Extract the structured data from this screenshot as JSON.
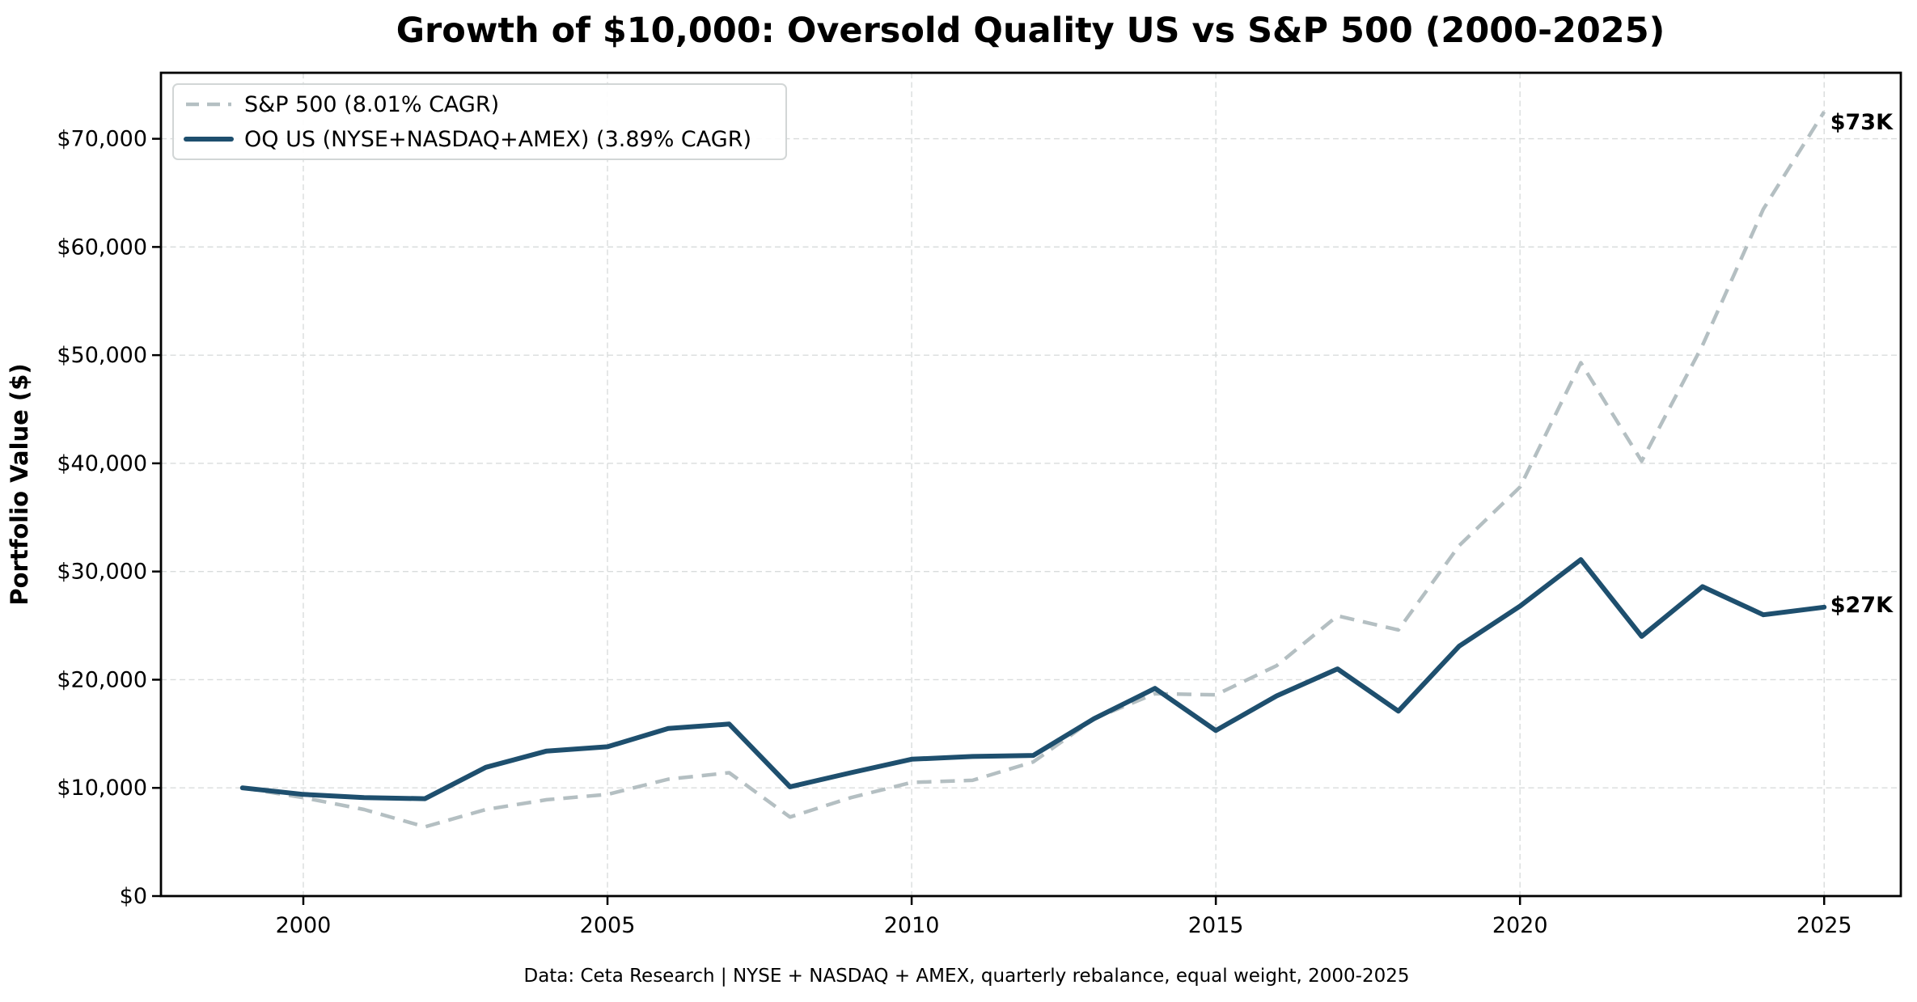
{
  "header": {
    "title": "Growth of $10,000: Oversold Quality US vs S&P 500 (2000-2025)"
  },
  "y_axis": {
    "label": "Portfolio Value ($)",
    "tick_values": [
      0,
      10000,
      20000,
      30000,
      40000,
      50000,
      60000,
      70000
    ],
    "tick_labels": [
      "$0",
      "$10,000",
      "$20,000",
      "$30,000",
      "$40,000",
      "$50,000",
      "$60,000",
      "$70,000"
    ]
  },
  "x_axis": {
    "tick_values": [
      2000,
      2005,
      2010,
      2015,
      2020,
      2025
    ],
    "tick_labels": [
      "2000",
      "2005",
      "2010",
      "2015",
      "2020",
      "2025"
    ]
  },
  "legend": {
    "items": [
      {
        "label": "S&P 500 (8.01% CAGR)",
        "style": "dashed"
      },
      {
        "label": "OQ US (NYSE+NASDAQ+AMEX) (3.89% CAGR)",
        "style": "solid"
      }
    ]
  },
  "annotations": {
    "sp500_end_label": "$73K",
    "oq_end_label": "$27K"
  },
  "footer": {
    "caption": "Data: Ceta Research | NYSE + NASDAQ + AMEX, quarterly rebalance, equal weight, 2000-2025"
  },
  "colors": {
    "sp500_line": "#b4bfc2",
    "oq_line": "#1e4f6e",
    "sp500_label": "#9aa8ad",
    "grid": "#d9dcdc",
    "footer_text": "#8da0a4",
    "axis_text": "#000000"
  },
  "chart_data": {
    "type": "line",
    "title": "Growth of $10,000: Oversold Quality US vs S&P 500 (2000-2025)",
    "xlabel": "",
    "ylabel": "Portfolio Value ($)",
    "xlim": [
      1997.66,
      2026.26
    ],
    "ylim": [
      0,
      76100
    ],
    "grid": true,
    "legend_position": "upper left",
    "x": [
      1999,
      2000,
      2001,
      2002,
      2003,
      2004,
      2005,
      2006,
      2007,
      2008,
      2009,
      2010,
      2011,
      2012,
      2013,
      2014,
      2015,
      2016,
      2017,
      2018,
      2019,
      2020,
      2021,
      2022,
      2023,
      2024,
      2025
    ],
    "series": [
      {
        "name": "S&P 500 (8.01% CAGR)",
        "color": "#b4bfc2",
        "line_style": "dashed",
        "end_label": "$73K",
        "values": [
          10000,
          9100,
          8000,
          6400,
          8000,
          8900,
          9400,
          10800,
          11400,
          7300,
          9100,
          10500,
          10700,
          12400,
          16400,
          18700,
          18600,
          21300,
          25900,
          24600,
          32400,
          37800,
          49300,
          40200,
          50900,
          63500,
          72500
        ]
      },
      {
        "name": "OQ US (NYSE+NASDAQ+AMEX) (3.89% CAGR)",
        "color": "#1e4f6e",
        "line_style": "solid",
        "end_label": "$27K",
        "values": [
          10000,
          9400,
          9100,
          9000,
          11900,
          13400,
          13800,
          15500,
          15900,
          10100,
          11400,
          12650,
          12900,
          13000,
          16400,
          19200,
          15300,
          18500,
          21000,
          17100,
          23100,
          26800,
          31100,
          24000,
          28600,
          26000,
          26700
        ]
      }
    ]
  }
}
